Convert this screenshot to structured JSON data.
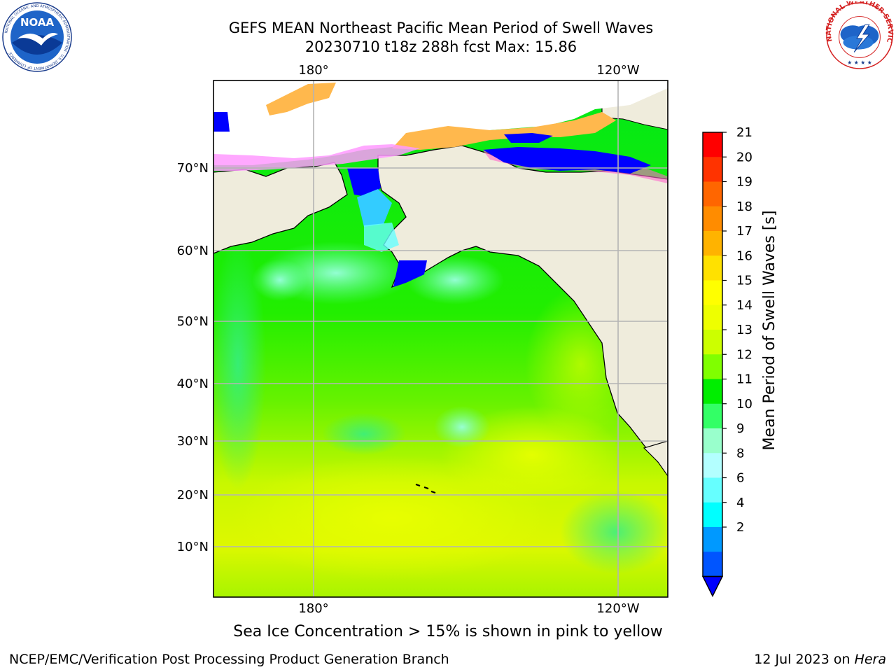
{
  "title": "GEFS MEAN Northeast Pacific Mean Period of Swell Waves",
  "subtitle": "20230710 t18z 288h fcst   Max: 15.86",
  "note": "Sea Ice Concentration > 15% is shown in pink to yellow",
  "footer": {
    "left": "NCEP/EMC/Verification Post Processing Product Generation Branch",
    "right_date": "12 Jul 2023 on ",
    "right_machine": "Hera"
  },
  "logos": {
    "noaa_text": "NOAA",
    "nws_text": "NATIONAL WEATHER SERVICE"
  },
  "map": {
    "lon_labels_top": [
      "180°",
      "120°W"
    ],
    "lon_labels_bottom": [
      "180°",
      "120°W"
    ],
    "lat_labels": [
      "70°N",
      "60°N",
      "50°N",
      "40°N",
      "30°N",
      "20°N",
      "10°N"
    ],
    "colors": {
      "land": "#efecdc",
      "grid": "#b4b4b4"
    }
  },
  "colorbar": {
    "label": "Mean Period of Swell Waves [s]",
    "ticks": [
      "21",
      "20",
      "19",
      "18",
      "17",
      "16",
      "15",
      "14",
      "13",
      "12",
      "11",
      "10",
      "9",
      "8",
      "6",
      "4",
      "2"
    ],
    "colors": [
      "#ff0000",
      "#ff3300",
      "#ff6600",
      "#ff8c00",
      "#ffb300",
      "#ffe100",
      "#ffff00",
      "#eeff00",
      "#ccff00",
      "#80ff00",
      "#00ee00",
      "#33ff66",
      "#99ffcc",
      "#b3ffff",
      "#66ffff",
      "#00ffff",
      "#0099ff",
      "#0055ff"
    ],
    "extend_color": "#0000ff"
  }
}
